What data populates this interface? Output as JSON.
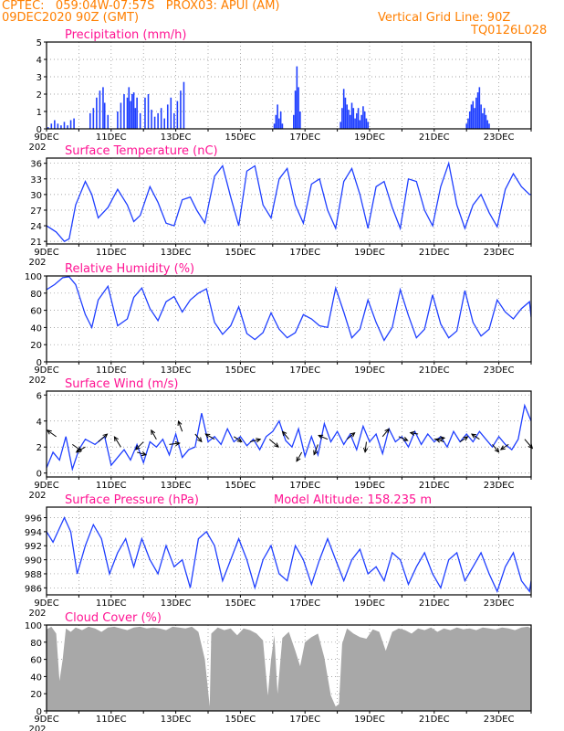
{
  "header": {
    "line1": "CPTEC:   059:04W-07:57S   PROX03: APUI (AM)",
    "line2": "09DEC2020 90Z (GMT)",
    "right1": "Vertical Grid Line: 90Z",
    "right2": "TQ0126L028",
    "color": "#ff7f00"
  },
  "colors": {
    "title": "#ff1493",
    "line": "#1f3fff",
    "bar": "#1f3fff",
    "cloud": "#a8a8a8",
    "grid": "#888888"
  },
  "x_axis": {
    "labels": [
      "9DEC",
      "11DEC",
      "13DEC",
      "15DEC",
      "17DEC",
      "19DEC",
      "21DEC",
      "23DEC"
    ],
    "under_label": "202",
    "start_day": 9,
    "end_day": 24
  },
  "panels": {
    "precip": {
      "title": "Precipitation (mm/h)",
      "chart_data": {
        "type": "bar",
        "ylim": [
          0,
          5
        ],
        "yticks": [
          0,
          1,
          2,
          3,
          4,
          5
        ],
        "x": [
          9.05,
          9.15,
          9.25,
          9.35,
          9.45,
          9.55,
          9.65,
          9.75,
          9.85,
          10.35,
          10.45,
          10.55,
          10.65,
          10.75,
          10.8,
          10.9,
          11.2,
          11.3,
          11.4,
          11.5,
          11.55,
          11.6,
          11.65,
          11.7,
          11.75,
          11.8,
          11.9,
          12.05,
          12.15,
          12.25,
          12.35,
          12.45,
          12.55,
          12.65,
          12.75,
          12.85,
          12.95,
          13.05,
          13.15,
          13.25,
          16.05,
          16.1,
          16.15,
          16.2,
          16.25,
          16.3,
          16.65,
          16.7,
          16.75,
          16.8,
          16.85,
          18.1,
          18.15,
          18.2,
          18.25,
          18.3,
          18.35,
          18.4,
          18.45,
          18.5,
          18.55,
          18.6,
          18.65,
          18.7,
          18.75,
          18.8,
          18.85,
          18.9,
          18.95,
          22.0,
          22.05,
          22.1,
          22.15,
          22.2,
          22.25,
          22.3,
          22.35,
          22.4,
          22.45,
          22.5,
          22.55,
          22.6,
          22.65,
          22.7
        ],
        "values": [
          0.1,
          0.3,
          0.5,
          0.3,
          0.2,
          0.4,
          0.2,
          0.5,
          0.6,
          0.9,
          1.2,
          1.8,
          2.2,
          2.4,
          1.5,
          0.8,
          1.0,
          1.5,
          2.0,
          1.8,
          2.4,
          1.6,
          2.0,
          2.1,
          1.2,
          1.8,
          0.9,
          1.8,
          2.0,
          1.1,
          0.7,
          0.9,
          1.2,
          0.6,
          1.4,
          1.8,
          0.9,
          1.6,
          2.2,
          2.7,
          0.3,
          0.8,
          1.4,
          0.6,
          1.0,
          0.3,
          0.8,
          2.2,
          3.6,
          2.4,
          1.0,
          0.4,
          1.2,
          2.3,
          1.8,
          1.4,
          1.1,
          0.8,
          1.5,
          1.2,
          0.6,
          0.9,
          1.2,
          0.5,
          0.8,
          1.3,
          1.0,
          0.6,
          0.4,
          0.3,
          0.6,
          1.0,
          1.4,
          1.6,
          1.2,
          1.8,
          2.1,
          2.4,
          1.4,
          0.9,
          1.2,
          0.8,
          0.5,
          0.3
        ]
      }
    },
    "temp": {
      "title": "Surface Temperature (nC)",
      "chart_data": {
        "type": "line",
        "ylim": [
          20.5,
          37
        ],
        "yticks": [
          21,
          24,
          27,
          30,
          33,
          36
        ],
        "x": [
          9.0,
          9.3,
          9.55,
          9.7,
          9.9,
          10.2,
          10.4,
          10.6,
          10.9,
          11.2,
          11.5,
          11.7,
          11.9,
          12.2,
          12.45,
          12.7,
          12.95,
          13.2,
          13.45,
          13.65,
          13.9,
          14.2,
          14.45,
          14.7,
          14.95,
          15.2,
          15.45,
          15.7,
          15.95,
          16.2,
          16.45,
          16.7,
          16.95,
          17.2,
          17.45,
          17.7,
          17.95,
          18.2,
          18.45,
          18.7,
          18.95,
          19.2,
          19.45,
          19.7,
          19.95,
          20.2,
          20.45,
          20.7,
          20.95,
          21.2,
          21.45,
          21.7,
          21.95,
          22.2,
          22.45,
          22.7,
          22.95,
          23.2,
          23.45,
          23.7,
          23.95,
          24.0
        ],
        "values": [
          24.0,
          22.8,
          21.0,
          21.5,
          28.0,
          32.5,
          30.0,
          25.5,
          27.5,
          31.0,
          28.0,
          24.8,
          26.0,
          31.5,
          28.5,
          24.5,
          24.0,
          29.0,
          29.5,
          27.0,
          24.5,
          33.5,
          35.5,
          29.5,
          24.0,
          34.5,
          35.5,
          28.0,
          25.5,
          33.0,
          35.0,
          28.0,
          24.5,
          32.0,
          33.0,
          27.0,
          23.5,
          32.5,
          35.0,
          30.0,
          23.5,
          31.5,
          32.5,
          27.5,
          23.5,
          33.0,
          32.5,
          27.0,
          24.0,
          31.5,
          36.0,
          28.0,
          23.5,
          28.0,
          30.0,
          26.5,
          23.8,
          31.0,
          34.0,
          31.5,
          30.0,
          30.0
        ]
      }
    },
    "rh": {
      "title": "Relative Humidity (%)",
      "chart_data": {
        "type": "line",
        "ylim": [
          0,
          100
        ],
        "yticks": [
          0,
          20,
          40,
          60,
          80,
          100
        ],
        "x": [
          9.0,
          9.25,
          9.5,
          9.7,
          9.9,
          10.2,
          10.4,
          10.6,
          10.9,
          11.2,
          11.5,
          11.7,
          11.95,
          12.2,
          12.45,
          12.7,
          12.95,
          13.2,
          13.45,
          13.7,
          13.95,
          14.2,
          14.45,
          14.7,
          14.95,
          15.2,
          15.45,
          15.7,
          15.95,
          16.2,
          16.45,
          16.7,
          16.95,
          17.2,
          17.45,
          17.7,
          17.95,
          18.2,
          18.45,
          18.7,
          18.95,
          19.2,
          19.45,
          19.7,
          19.95,
          20.2,
          20.45,
          20.7,
          20.95,
          21.2,
          21.45,
          21.7,
          21.95,
          22.2,
          22.45,
          22.7,
          22.95,
          23.2,
          23.45,
          23.7,
          23.95,
          24.0
        ],
        "values": [
          84,
          90,
          98,
          99,
          90,
          55,
          40,
          72,
          88,
          42,
          50,
          75,
          86,
          62,
          48,
          70,
          76,
          58,
          72,
          80,
          85,
          46,
          32,
          42,
          64,
          33,
          26,
          34,
          57,
          38,
          28,
          34,
          55,
          50,
          42,
          40,
          86,
          58,
          28,
          38,
          72,
          46,
          25,
          40,
          84,
          54,
          28,
          38,
          78,
          44,
          28,
          36,
          83,
          46,
          30,
          38,
          72,
          58,
          50,
          62,
          70,
          52
        ]
      }
    },
    "wind": {
      "title": "Surface Wind (m/s)",
      "chart_data": {
        "type": "line",
        "ylim": [
          -0.3,
          6.3
        ],
        "yticks": [
          0,
          2,
          4,
          6
        ],
        "x": [
          9.0,
          9.2,
          9.4,
          9.6,
          9.8,
          10.0,
          10.2,
          10.5,
          10.8,
          11.0,
          11.2,
          11.4,
          11.6,
          11.8,
          12.0,
          12.2,
          12.4,
          12.6,
          12.8,
          13.0,
          13.2,
          13.4,
          13.6,
          13.8,
          14.0,
          14.2,
          14.4,
          14.6,
          14.8,
          15.0,
          15.2,
          15.4,
          15.6,
          15.8,
          16.0,
          16.2,
          16.4,
          16.6,
          16.8,
          17.0,
          17.2,
          17.4,
          17.6,
          17.8,
          18.0,
          18.2,
          18.4,
          18.6,
          18.8,
          19.0,
          19.2,
          19.4,
          19.6,
          19.8,
          20.0,
          20.2,
          20.4,
          20.6,
          20.8,
          21.0,
          21.2,
          21.4,
          21.6,
          21.8,
          22.0,
          22.2,
          22.4,
          22.6,
          22.8,
          23.0,
          23.2,
          23.4,
          23.6,
          23.8,
          24.0
        ],
        "values": [
          0.4,
          1.6,
          1.0,
          2.8,
          0.3,
          1.8,
          2.6,
          2.2,
          2.8,
          0.6,
          1.2,
          1.8,
          1.0,
          2.2,
          0.8,
          2.4,
          2.0,
          2.6,
          1.4,
          3.0,
          1.2,
          1.8,
          2.0,
          4.6,
          2.4,
          2.8,
          2.2,
          3.4,
          2.4,
          2.8,
          2.1,
          2.6,
          1.8,
          2.8,
          3.2,
          4.0,
          2.5,
          2.0,
          3.4,
          1.3,
          2.8,
          1.4,
          3.8,
          2.4,
          3.2,
          2.2,
          3.0,
          1.8,
          3.6,
          2.4,
          3.0,
          1.5,
          3.4,
          2.4,
          2.8,
          2.0,
          3.2,
          2.2,
          3.0,
          2.4,
          2.8,
          2.0,
          3.2,
          2.4,
          3.0,
          2.4,
          3.2,
          2.6,
          2.0,
          2.8,
          2.2,
          1.8,
          2.6,
          5.2,
          4.0
        ],
        "arrows": [
          {
            "x": 9.3,
            "y": 2.8,
            "u": -0.7,
            "v": 0.5
          },
          {
            "x": 9.8,
            "y": 2.2,
            "u": 0.7,
            "v": -0.5
          },
          {
            "x": 10.2,
            "y": 2.0,
            "u": -0.7,
            "v": -0.4
          },
          {
            "x": 10.6,
            "y": 2.4,
            "u": 0.7,
            "v": 0.6
          },
          {
            "x": 11.3,
            "y": 2.0,
            "u": -0.5,
            "v": 0.8
          },
          {
            "x": 11.8,
            "y": 1.6,
            "u": 0.7,
            "v": -0.2
          },
          {
            "x": 12.0,
            "y": 2.4,
            "u": -0.6,
            "v": -0.6
          },
          {
            "x": 12.4,
            "y": 2.6,
            "u": -0.4,
            "v": 0.7
          },
          {
            "x": 12.8,
            "y": 2.2,
            "u": 0.8,
            "v": 0.1
          },
          {
            "x": 13.2,
            "y": 3.2,
            "u": -0.3,
            "v": 0.8
          },
          {
            "x": 13.6,
            "y": 3.0,
            "u": 0.5,
            "v": -0.6
          },
          {
            "x": 14.2,
            "y": 2.6,
            "u": -0.7,
            "v": 0.4
          },
          {
            "x": 14.8,
            "y": 2.8,
            "u": 0.6,
            "v": -0.4
          },
          {
            "x": 15.3,
            "y": 2.4,
            "u": 0.8,
            "v": 0.2
          },
          {
            "x": 15.9,
            "y": 2.6,
            "u": 0.7,
            "v": -0.6
          },
          {
            "x": 16.5,
            "y": 2.6,
            "u": -0.5,
            "v": 0.6
          },
          {
            "x": 16.9,
            "y": 1.6,
            "u": -0.4,
            "v": -0.7
          },
          {
            "x": 17.4,
            "y": 2.2,
            "u": -0.3,
            "v": -0.8
          },
          {
            "x": 17.7,
            "y": 2.6,
            "u": -0.7,
            "v": 0.3
          },
          {
            "x": 18.3,
            "y": 2.6,
            "u": 0.6,
            "v": 0.5
          },
          {
            "x": 18.9,
            "y": 2.4,
            "u": -0.1,
            "v": -0.8
          },
          {
            "x": 19.4,
            "y": 2.8,
            "u": 0.5,
            "v": 0.6
          },
          {
            "x": 19.9,
            "y": 2.8,
            "u": 0.7,
            "v": -0.3
          },
          {
            "x": 20.5,
            "y": 3.0,
            "u": -0.6,
            "v": 0.1
          },
          {
            "x": 21.0,
            "y": 2.6,
            "u": 0.8,
            "v": 0.1
          },
          {
            "x": 21.3,
            "y": 2.4,
            "u": -0.6,
            "v": 0.2
          },
          {
            "x": 21.8,
            "y": 2.4,
            "u": 0.6,
            "v": 0.4
          },
          {
            "x": 22.4,
            "y": 2.6,
            "u": -0.6,
            "v": 0.4
          },
          {
            "x": 22.8,
            "y": 2.2,
            "u": 0.5,
            "v": -0.6
          },
          {
            "x": 23.3,
            "y": 2.2,
            "u": -0.6,
            "v": -0.4
          },
          {
            "x": 23.8,
            "y": 2.6,
            "u": 0.6,
            "v": -0.7
          }
        ]
      }
    },
    "pres": {
      "title": "Surface Pressure (hPa)",
      "extra": "Model Altitude: 158.235 m",
      "chart_data": {
        "type": "line",
        "ylim": [
          985,
          997.5
        ],
        "yticks": [
          986,
          988,
          990,
          992,
          994,
          996
        ],
        "x": [
          9.0,
          9.2,
          9.4,
          9.55,
          9.75,
          9.95,
          10.2,
          10.45,
          10.7,
          10.95,
          11.2,
          11.45,
          11.7,
          11.95,
          12.2,
          12.45,
          12.7,
          12.95,
          13.2,
          13.45,
          13.7,
          13.95,
          14.2,
          14.45,
          14.7,
          14.95,
          15.2,
          15.45,
          15.7,
          15.95,
          16.2,
          16.45,
          16.7,
          16.95,
          17.2,
          17.45,
          17.7,
          17.95,
          18.2,
          18.45,
          18.7,
          18.95,
          19.2,
          19.45,
          19.7,
          19.95,
          20.2,
          20.45,
          20.7,
          20.95,
          21.2,
          21.45,
          21.7,
          21.95,
          22.2,
          22.45,
          22.7,
          22.95,
          23.2,
          23.45,
          23.7,
          23.95,
          24.0
        ],
        "values": [
          994,
          992.5,
          994.5,
          996,
          994,
          988,
          992,
          995,
          993,
          988,
          991,
          993,
          989,
          993,
          990,
          988,
          992,
          989,
          990,
          986,
          993,
          994,
          992,
          987,
          990,
          993,
          990,
          986,
          990,
          992,
          988,
          987,
          992,
          990,
          986.5,
          990,
          993,
          990,
          987,
          990,
          991.5,
          988,
          989,
          987,
          991,
          990,
          986.5,
          989,
          991,
          988,
          986,
          990,
          991,
          987,
          989,
          991,
          988,
          985.5,
          989,
          991,
          987,
          985.5,
          987
        ]
      }
    },
    "cloud": {
      "title": "Cloud Cover (%)",
      "chart_data": {
        "type": "area",
        "ylim": [
          0,
          100
        ],
        "yticks": [
          0,
          20,
          40,
          60,
          80,
          100
        ],
        "x": [
          9.0,
          9.15,
          9.3,
          9.4,
          9.5,
          9.6,
          9.75,
          9.9,
          10.1,
          10.3,
          10.5,
          10.7,
          10.9,
          11.1,
          11.3,
          11.5,
          11.7,
          11.9,
          12.1,
          12.3,
          12.5,
          12.7,
          12.9,
          13.1,
          13.3,
          13.5,
          13.7,
          13.9,
          14.05,
          14.1,
          14.3,
          14.5,
          14.7,
          14.9,
          15.1,
          15.3,
          15.5,
          15.7,
          15.85,
          15.95,
          16.05,
          16.15,
          16.3,
          16.5,
          16.7,
          16.85,
          17.0,
          17.2,
          17.4,
          17.6,
          17.8,
          17.95,
          18.05,
          18.15,
          18.3,
          18.5,
          18.7,
          18.9,
          19.1,
          19.3,
          19.5,
          19.7,
          19.9,
          20.1,
          20.3,
          20.5,
          20.7,
          20.9,
          21.1,
          21.3,
          21.5,
          21.7,
          21.9,
          22.1,
          22.3,
          22.5,
          22.7,
          22.9,
          23.1,
          23.3,
          23.5,
          23.7,
          23.9,
          24.0
        ],
        "values": [
          95,
          98,
          90,
          35,
          60,
          96,
          92,
          97,
          94,
          98,
          96,
          92,
          97,
          98,
          96,
          94,
          97,
          98,
          96,
          97,
          96,
          94,
          98,
          97,
          96,
          98,
          92,
          60,
          5,
          90,
          97,
          94,
          96,
          88,
          96,
          94,
          90,
          82,
          18,
          60,
          88,
          20,
          85,
          92,
          70,
          52,
          80,
          86,
          90,
          62,
          18,
          5,
          8,
          78,
          96,
          90,
          86,
          84,
          95,
          92,
          70,
          92,
          96,
          94,
          90,
          96,
          94,
          97,
          92,
          96,
          94,
          97,
          95,
          96,
          94,
          97,
          96,
          95,
          97,
          96,
          94,
          97,
          98,
          96
        ]
      }
    }
  }
}
